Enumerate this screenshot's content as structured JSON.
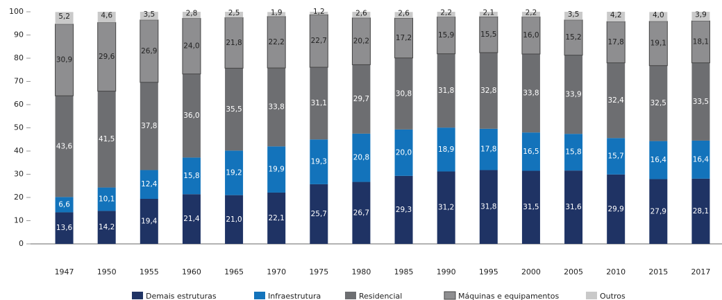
{
  "chart_data": {
    "type": "stacked-bar",
    "categories": [
      "1947",
      "1950",
      "1955",
      "1960",
      "1965",
      "1970",
      "1975",
      "1980",
      "1985",
      "1990",
      "1995",
      "2000",
      "2005",
      "2010",
      "2015",
      "2017"
    ],
    "ylim": [
      0,
      100
    ],
    "yticks": [
      0,
      10,
      20,
      30,
      40,
      50,
      60,
      70,
      80,
      90,
      100
    ],
    "grid": false,
    "legend": "bottom",
    "series": [
      {
        "name": "Demais estruturas",
        "color": "#1f3364",
        "label_color": "#ffffff",
        "values": [
          13.6,
          14.2,
          19.4,
          21.4,
          21.0,
          22.1,
          25.7,
          26.7,
          29.3,
          31.2,
          31.8,
          31.5,
          31.6,
          29.9,
          27.9,
          28.1
        ],
        "value_labels": [
          "13,6",
          "14,2",
          "19,4",
          "21,4",
          "21,0",
          "22,1",
          "25,7",
          "26,7",
          "29,3",
          "31,2",
          "31,8",
          "31,5",
          "31,6",
          "29,9",
          "27,9",
          "28,1"
        ]
      },
      {
        "name": "Infraestrutura",
        "color": "#1373bb",
        "label_color": "#ffffff",
        "values": [
          6.6,
          10.1,
          12.4,
          15.8,
          19.2,
          19.9,
          19.3,
          20.8,
          20.0,
          18.9,
          17.8,
          16.5,
          15.8,
          15.7,
          16.4,
          16.4
        ],
        "value_labels": [
          "6,6",
          "10,1",
          "12,4",
          "15,8",
          "19,2",
          "19,9",
          "19,3",
          "20,8",
          "20,0",
          "18,9",
          "17,8",
          "16,5",
          "15,8",
          "15,7",
          "16,4",
          "16,4"
        ]
      },
      {
        "name": "Residencial",
        "color": "#6d6e71",
        "label_color": "#ffffff",
        "values": [
          43.6,
          41.5,
          37.8,
          36.0,
          35.5,
          33.8,
          31.1,
          29.7,
          30.8,
          31.8,
          32.8,
          33.8,
          33.9,
          32.4,
          32.5,
          33.5
        ],
        "value_labels": [
          "43,6",
          "41,5",
          "37,8",
          "36,0",
          "35,5",
          "33,8",
          "31,1",
          "29,7",
          "30,8",
          "31,8",
          "32,8",
          "33,8",
          "33,9",
          "32,4",
          "32,5",
          "33,5"
        ]
      },
      {
        "name": "Máquinas e equipamentos",
        "color": "#8e8e90",
        "label_color": "#222222",
        "values": [
          30.9,
          29.6,
          26.9,
          24.0,
          21.8,
          22.2,
          22.7,
          20.2,
          17.2,
          15.9,
          15.5,
          16.0,
          15.2,
          17.8,
          19.1,
          18.1
        ],
        "value_labels": [
          "30,9",
          "29,6",
          "26,9",
          "24,0",
          "21,8",
          "22,2",
          "22,7",
          "20,2",
          "17,2",
          "15,9",
          "15,5",
          "16,0",
          "15,2",
          "17,8",
          "19,1",
          "18,1"
        ]
      },
      {
        "name": "Outros",
        "color": "#c9c9c9",
        "label_color": "#222222",
        "values": [
          5.2,
          4.6,
          3.5,
          2.8,
          2.5,
          1.9,
          1.2,
          2.6,
          2.6,
          2.2,
          2.1,
          2.2,
          3.5,
          4.2,
          4.0,
          3.9
        ],
        "value_labels": [
          "5,2",
          "4,6",
          "3,5",
          "2,8",
          "2,5",
          "1,9",
          "1,2",
          "2,6",
          "2,6",
          "2,2",
          "2,1",
          "2,2",
          "3,5",
          "4,2",
          "4,0",
          "3,9"
        ]
      }
    ]
  }
}
